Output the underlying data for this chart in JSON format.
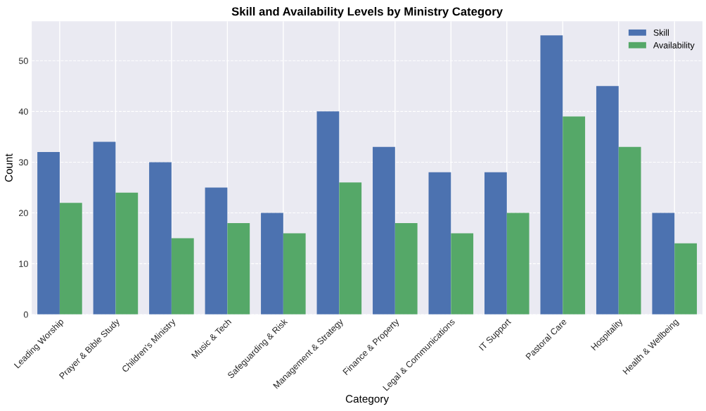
{
  "chart_data": {
    "type": "bar",
    "title": "Skill and Availability Levels by Ministry Category",
    "xlabel": "Category",
    "ylabel": "Count",
    "categories": [
      "Leading Worship",
      "Prayer & Bible Study",
      "Children's Ministry",
      "Music & Tech",
      "Safeguarding & Risk",
      "Management & Strategy",
      "Finance & Property",
      "Legal & Communications",
      "IT Support",
      "Pastoral Care",
      "Hospitality",
      "Health & Wellbeing"
    ],
    "series": [
      {
        "name": "Skill",
        "color": "#4c72b0",
        "values": [
          32,
          34,
          30,
          25,
          20,
          40,
          33,
          28,
          28,
          55,
          45,
          20
        ]
      },
      {
        "name": "Availability",
        "color": "#55a868",
        "values": [
          22,
          24,
          15,
          18,
          16,
          26,
          18,
          16,
          20,
          39,
          33,
          14
        ]
      }
    ],
    "ylim": [
      0,
      57.75
    ],
    "yticks": [
      0,
      10,
      20,
      30,
      40,
      50
    ],
    "grid": true,
    "legend": "top right"
  }
}
